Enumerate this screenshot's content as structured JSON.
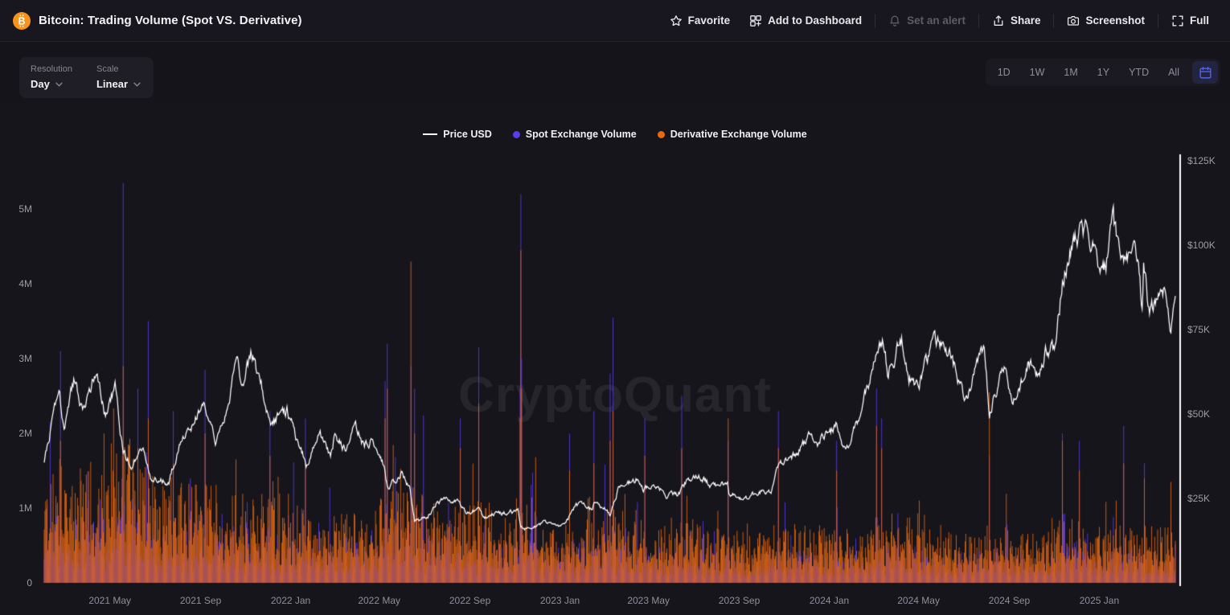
{
  "header": {
    "title": "Bitcoin: Trading Volume (Spot VS. Derivative)",
    "logo_symbol": "B",
    "brand_color": "#f7931a",
    "actions": [
      {
        "id": "favorite",
        "label": "Favorite",
        "icon": "star-icon",
        "enabled": true
      },
      {
        "id": "add-to-dashboard",
        "label": "Add to Dashboard",
        "icon": "dashboard-icon",
        "enabled": true
      },
      {
        "id": "set-alert",
        "label": "Set an alert",
        "icon": "bell-icon",
        "enabled": false
      },
      {
        "id": "share",
        "label": "Share",
        "icon": "share-icon",
        "enabled": true
      },
      {
        "id": "screenshot",
        "label": "Screenshot",
        "icon": "camera-icon",
        "enabled": true
      },
      {
        "id": "full",
        "label": "Full",
        "icon": "fullscreen-icon",
        "enabled": true
      }
    ]
  },
  "toolbar": {
    "resolution": {
      "label": "Resolution",
      "value": "Day"
    },
    "scale": {
      "label": "Scale",
      "value": "Linear"
    },
    "ranges": [
      "1D",
      "1W",
      "1M",
      "1Y",
      "YTD",
      "All"
    ],
    "calendar_accent": "#5661f0"
  },
  "watermark": "CryptoQuant",
  "chart_data": {
    "type": "bar+line",
    "title": "Bitcoin: Trading Volume (Spot VS. Derivative)",
    "legend_position": "top-center",
    "grid": false,
    "series_meta": [
      {
        "name": "Price USD",
        "type": "line",
        "axis": "right",
        "color": "#ffffff"
      },
      {
        "name": "Spot Exchange Volume",
        "type": "bar",
        "axis": "left",
        "color": "#5a3bee"
      },
      {
        "name": "Derivative Exchange Volume",
        "type": "bar",
        "axis": "left",
        "color": "#e8690f"
      }
    ],
    "left_axis": {
      "label": "Volume",
      "unit": "M",
      "plot_max": 5.69,
      "ticks": [
        {
          "label": "5M",
          "value": 5
        },
        {
          "label": "4M",
          "value": 4
        },
        {
          "label": "3M",
          "value": 3
        },
        {
          "label": "2M",
          "value": 2
        },
        {
          "label": "1M",
          "value": 1
        },
        {
          "label": "0",
          "value": 0
        }
      ]
    },
    "right_axis": {
      "label": "Price USD",
      "unit": "$K",
      "plot_max": 125.9,
      "ticks": [
        {
          "label": "$125K",
          "value": 125
        },
        {
          "label": "$100K",
          "value": 100
        },
        {
          "label": "$75K",
          "value": 75
        },
        {
          "label": "$50K",
          "value": 50
        },
        {
          "label": "$25K",
          "value": 25
        }
      ]
    },
    "x_axis": {
      "start": "2021-02-01",
      "end": "2025-04-14",
      "ticks": [
        {
          "label": "2021 May",
          "date": "2021-05-01"
        },
        {
          "label": "2021 Sep",
          "date": "2021-09-01"
        },
        {
          "label": "2022 Jan",
          "date": "2022-01-01"
        },
        {
          "label": "2022 May",
          "date": "2022-05-01"
        },
        {
          "label": "2022 Sep",
          "date": "2022-09-01"
        },
        {
          "label": "2023 Jan",
          "date": "2023-01-01"
        },
        {
          "label": "2023 May",
          "date": "2023-05-01"
        },
        {
          "label": "2023 Sep",
          "date": "2023-09-01"
        },
        {
          "label": "2024 Jan",
          "date": "2024-01-01"
        },
        {
          "label": "2024 May",
          "date": "2024-05-01"
        },
        {
          "label": "2024 Sep",
          "date": "2024-09-01"
        },
        {
          "label": "2025 Jan",
          "date": "2025-01-01"
        }
      ]
    },
    "price_usd_anchors_k": [
      [
        "2021-02-01",
        36
      ],
      [
        "2021-02-21",
        57
      ],
      [
        "2021-02-28",
        45
      ],
      [
        "2021-03-13",
        60
      ],
      [
        "2021-03-25",
        51
      ],
      [
        "2021-04-14",
        64
      ],
      [
        "2021-04-25",
        49
      ],
      [
        "2021-05-08",
        58
      ],
      [
        "2021-05-19",
        38
      ],
      [
        "2021-05-30",
        35
      ],
      [
        "2021-06-15",
        40
      ],
      [
        "2021-06-26",
        31
      ],
      [
        "2021-07-20",
        30
      ],
      [
        "2021-08-08",
        44
      ],
      [
        "2021-08-20",
        47
      ],
      [
        "2021-09-06",
        52
      ],
      [
        "2021-09-21",
        41
      ],
      [
        "2021-10-06",
        51
      ],
      [
        "2021-10-20",
        66
      ],
      [
        "2021-10-27",
        59
      ],
      [
        "2021-11-09",
        68
      ],
      [
        "2021-11-28",
        54
      ],
      [
        "2021-12-04",
        47
      ],
      [
        "2021-12-27",
        51
      ],
      [
        "2022-01-10",
        42
      ],
      [
        "2022-01-22",
        35
      ],
      [
        "2022-02-10",
        44
      ],
      [
        "2022-02-24",
        37
      ],
      [
        "2022-03-02",
        44
      ],
      [
        "2022-03-16",
        39
      ],
      [
        "2022-03-29",
        47
      ],
      [
        "2022-04-11",
        40
      ],
      [
        "2022-04-21",
        42
      ],
      [
        "2022-05-08",
        34
      ],
      [
        "2022-05-12",
        28
      ],
      [
        "2022-05-31",
        32
      ],
      [
        "2022-06-11",
        28
      ],
      [
        "2022-06-18",
        18.5
      ],
      [
        "2022-07-03",
        19
      ],
      [
        "2022-07-20",
        24
      ],
      [
        "2022-08-14",
        24.5
      ],
      [
        "2022-08-28",
        20
      ],
      [
        "2022-09-12",
        22.3
      ],
      [
        "2022-09-21",
        18.8
      ],
      [
        "2022-10-04",
        20.3
      ],
      [
        "2022-11-05",
        21.2
      ],
      [
        "2022-11-09",
        16
      ],
      [
        "2022-11-21",
        15.7
      ],
      [
        "2022-12-14",
        18
      ],
      [
        "2022-12-30",
        16.5
      ],
      [
        "2023-01-08",
        17
      ],
      [
        "2023-01-21",
        22.7
      ],
      [
        "2023-02-02",
        23.7
      ],
      [
        "2023-02-13",
        21.7
      ],
      [
        "2023-02-20",
        24.8
      ],
      [
        "2023-03-10",
        20
      ],
      [
        "2023-03-22",
        28.3
      ],
      [
        "2023-04-14",
        30.5
      ],
      [
        "2023-04-24",
        27.5
      ],
      [
        "2023-05-06",
        29.5
      ],
      [
        "2023-05-25",
        26.3
      ],
      [
        "2023-06-10",
        25.7
      ],
      [
        "2023-06-23",
        30.7
      ],
      [
        "2023-07-13",
        31.3
      ],
      [
        "2023-07-24",
        29.2
      ],
      [
        "2023-08-16",
        29
      ],
      [
        "2023-08-18",
        26.1
      ],
      [
        "2023-09-11",
        25.2
      ],
      [
        "2023-09-29",
        27
      ],
      [
        "2023-10-15",
        27.2
      ],
      [
        "2023-10-24",
        34
      ],
      [
        "2023-11-09",
        36.7
      ],
      [
        "2023-12-08",
        44
      ],
      [
        "2023-12-18",
        41.4
      ],
      [
        "2024-01-11",
        46.6
      ],
      [
        "2024-01-23",
        39.6
      ],
      [
        "2024-02-12",
        49.9
      ],
      [
        "2024-02-28",
        62
      ],
      [
        "2024-03-13",
        73.1
      ],
      [
        "2024-03-20",
        62.8
      ],
      [
        "2024-04-08",
        71.6
      ],
      [
        "2024-04-18",
        61.3
      ],
      [
        "2024-05-01",
        57.5
      ],
      [
        "2024-05-21",
        71.4
      ],
      [
        "2024-06-07",
        71.1
      ],
      [
        "2024-06-24",
        60.3
      ],
      [
        "2024-07-05",
        54
      ],
      [
        "2024-07-29",
        69.9
      ],
      [
        "2024-08-05",
        50
      ],
      [
        "2024-08-25",
        64.5
      ],
      [
        "2024-09-06",
        53.3
      ],
      [
        "2024-09-27",
        65.7
      ],
      [
        "2024-10-10",
        60.3
      ],
      [
        "2024-10-21",
        69
      ],
      [
        "2024-11-01",
        69.5
      ],
      [
        "2024-11-12",
        88
      ],
      [
        "2024-11-22",
        99
      ],
      [
        "2024-12-05",
        103
      ],
      [
        "2024-12-17",
        106.3
      ],
      [
        "2024-12-30",
        92.6
      ],
      [
        "2025-01-09",
        92.5
      ],
      [
        "2025-01-20",
        106
      ],
      [
        "2025-01-27",
        98
      ],
      [
        "2025-02-07",
        98
      ],
      [
        "2025-02-21",
        96.2
      ],
      [
        "2025-02-28",
        80.5
      ],
      [
        "2025-03-02",
        94.2
      ],
      [
        "2025-03-10",
        78.5
      ],
      [
        "2025-03-24",
        87.5
      ],
      [
        "2025-04-02",
        85.2
      ],
      [
        "2025-04-08",
        76.3
      ],
      [
        "2025-04-14",
        83.5
      ]
    ],
    "volume_envelope_monthly_m": {
      "columns": [
        "month",
        "derivative_typical_daily_max",
        "spot_typical_daily_max"
      ],
      "rows": [
        [
          "2021-02",
          1.55,
          0.95
        ],
        [
          "2021-03",
          1.45,
          0.85
        ],
        [
          "2021-04",
          1.5,
          0.9
        ],
        [
          "2021-05",
          1.8,
          1.2
        ],
        [
          "2021-06",
          1.5,
          0.95
        ],
        [
          "2021-07",
          1.25,
          0.75
        ],
        [
          "2021-08",
          1.25,
          0.75
        ],
        [
          "2021-09",
          1.3,
          0.8
        ],
        [
          "2021-10",
          1.15,
          0.65
        ],
        [
          "2021-11",
          1.1,
          0.65
        ],
        [
          "2021-12",
          1.05,
          0.6
        ],
        [
          "2022-01",
          1.0,
          0.6
        ],
        [
          "2022-02",
          0.9,
          0.55
        ],
        [
          "2022-03",
          0.85,
          0.5
        ],
        [
          "2022-04",
          0.9,
          0.55
        ],
        [
          "2022-05",
          1.25,
          0.85
        ],
        [
          "2022-06",
          1.2,
          0.85
        ],
        [
          "2022-07",
          0.95,
          0.6
        ],
        [
          "2022-08",
          0.95,
          0.6
        ],
        [
          "2022-09",
          1.0,
          0.65
        ],
        [
          "2022-10",
          0.8,
          0.5
        ],
        [
          "2022-11",
          1.05,
          0.75
        ],
        [
          "2022-12",
          0.7,
          0.42
        ],
        [
          "2023-01",
          0.72,
          0.45
        ],
        [
          "2023-02",
          0.8,
          0.5
        ],
        [
          "2023-03",
          0.95,
          0.6
        ],
        [
          "2023-04",
          0.8,
          0.45
        ],
        [
          "2023-05",
          0.72,
          0.4
        ],
        [
          "2023-06",
          0.8,
          0.45
        ],
        [
          "2023-07",
          0.7,
          0.36
        ],
        [
          "2023-08",
          0.7,
          0.36
        ],
        [
          "2023-09",
          0.62,
          0.32
        ],
        [
          "2023-10",
          0.72,
          0.4
        ],
        [
          "2023-11",
          0.72,
          0.4
        ],
        [
          "2023-12",
          0.72,
          0.4
        ],
        [
          "2024-01",
          0.72,
          0.4
        ],
        [
          "2024-02",
          0.72,
          0.4
        ],
        [
          "2024-03",
          0.9,
          0.55
        ],
        [
          "2024-04",
          0.8,
          0.45
        ],
        [
          "2024-05",
          0.7,
          0.4
        ],
        [
          "2024-06",
          0.62,
          0.35
        ],
        [
          "2024-07",
          0.62,
          0.35
        ],
        [
          "2024-08",
          0.72,
          0.4
        ],
        [
          "2024-09",
          0.6,
          0.32
        ],
        [
          "2024-10",
          0.62,
          0.32
        ],
        [
          "2024-11",
          0.8,
          0.45
        ],
        [
          "2024-12",
          0.78,
          0.44
        ],
        [
          "2025-01",
          0.72,
          0.4
        ],
        [
          "2025-02",
          0.72,
          0.4
        ],
        [
          "2025-03",
          0.7,
          0.38
        ],
        [
          "2025-04",
          0.7,
          0.38
        ]
      ]
    },
    "volume_spikes_m": {
      "columns": [
        "date",
        "derivative_m",
        "spot_m"
      ],
      "rows": [
        [
          "2021-02-23",
          1.9,
          3.1
        ],
        [
          "2021-05-19",
          2.9,
          5.35
        ],
        [
          "2021-06-08",
          1.8,
          2.6
        ],
        [
          "2021-06-22",
          2.2,
          3.5
        ],
        [
          "2021-07-26",
          1.6,
          2.3
        ],
        [
          "2021-09-07",
          2.0,
          2.85
        ],
        [
          "2021-12-04",
          1.7,
          2.3
        ],
        [
          "2022-01-21",
          1.6,
          2.2
        ],
        [
          "2022-05-09",
          2.2,
          2.7
        ],
        [
          "2022-05-12",
          2.6,
          3.2
        ],
        [
          "2022-06-13",
          4.3,
          2.9
        ],
        [
          "2022-06-18",
          2.0,
          2.6
        ],
        [
          "2022-08-19",
          1.8,
          2.2
        ],
        [
          "2022-09-13",
          2.4,
          3.15
        ],
        [
          "2022-11-08",
          2.2,
          2.6
        ],
        [
          "2022-11-09",
          4.45,
          5.2
        ],
        [
          "2022-11-10",
          2.6,
          3.0
        ],
        [
          "2023-01-14",
          1.5,
          2.0
        ],
        [
          "2023-02-16",
          1.6,
          2.3
        ],
        [
          "2023-03-10",
          1.9,
          2.8
        ],
        [
          "2023-03-14",
          2.3,
          3.55
        ],
        [
          "2023-04-26",
          1.7,
          2.2
        ],
        [
          "2023-06-15",
          1.8,
          2.5
        ],
        [
          "2023-08-17",
          2.2,
          1.9
        ],
        [
          "2023-10-24",
          1.8,
          2.3
        ],
        [
          "2024-01-11",
          1.5,
          1.9
        ],
        [
          "2024-03-05",
          2.1,
          2.6
        ],
        [
          "2024-03-12",
          1.8,
          2.2
        ],
        [
          "2024-08-05",
          2.55,
          1.7
        ],
        [
          "2024-11-12",
          1.9,
          2.0
        ],
        [
          "2024-12-05",
          1.5,
          1.9
        ],
        [
          "2025-02-03",
          1.6,
          2.1
        ],
        [
          "2025-03-03",
          1.4,
          1.6
        ],
        [
          "2025-04-08",
          1.35,
          0.9
        ]
      ]
    }
  }
}
